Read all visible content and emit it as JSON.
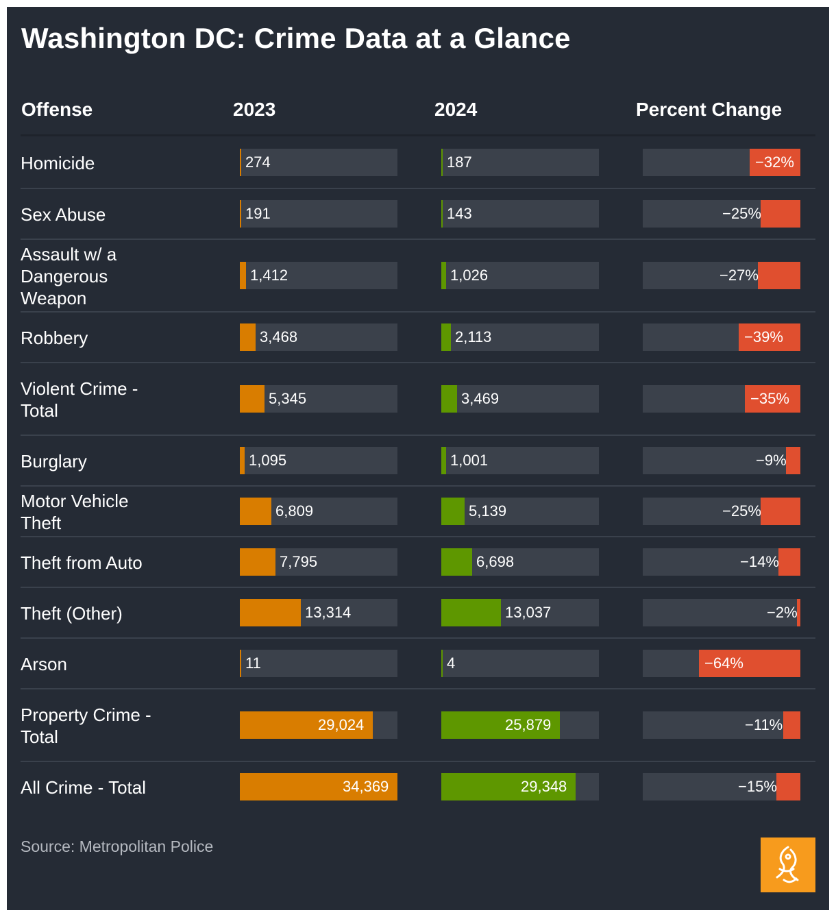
{
  "title": "Washington DC: Crime Data at a Glance",
  "headers": {
    "offense": "Offense",
    "y2023": "2023",
    "y2024": "2024",
    "pct": "Percent Change"
  },
  "source": "Source: Metropolitan Police",
  "logo_text": "الجزيرة",
  "colors": {
    "background": "#252b35",
    "bar_2023": "#d97d00",
    "bar_2024": "#5e9700",
    "bar_change": "#e04f2f",
    "track": "#3b414b",
    "logo": "#f79b1d"
  },
  "chart_data": {
    "type": "table",
    "title": "Washington DC: Crime Data at a Glance",
    "columns": [
      "Offense",
      "2023",
      "2024",
      "Percent Change"
    ],
    "rows": [
      {
        "offense": "Homicide",
        "v2023": 274,
        "v2023_label": "274",
        "v2024": 187,
        "v2024_label": "187",
        "pct": -32,
        "pct_label": "−32%"
      },
      {
        "offense": "Sex Abuse",
        "v2023": 191,
        "v2023_label": "191",
        "v2024": 143,
        "v2024_label": "143",
        "pct": -25,
        "pct_label": "−25%"
      },
      {
        "offense": "Assault w/ a Dangerous Weapon",
        "v2023": 1412,
        "v2023_label": "1,412",
        "v2024": 1026,
        "v2024_label": "1,026",
        "pct": -27,
        "pct_label": "−27%"
      },
      {
        "offense": "Robbery",
        "v2023": 3468,
        "v2023_label": "3,468",
        "v2024": 2113,
        "v2024_label": "2,113",
        "pct": -39,
        "pct_label": "−39%"
      },
      {
        "offense": "Violent Crime - Total",
        "v2023": 5345,
        "v2023_label": "5,345",
        "v2024": 3469,
        "v2024_label": "3,469",
        "pct": -35,
        "pct_label": "−35%"
      },
      {
        "offense": "Burglary",
        "v2023": 1095,
        "v2023_label": "1,095",
        "v2024": 1001,
        "v2024_label": "1,001",
        "pct": -9,
        "pct_label": "−9%"
      },
      {
        "offense": "Motor Vehicle Theft",
        "v2023": 6809,
        "v2023_label": "6,809",
        "v2024": 5139,
        "v2024_label": "5,139",
        "pct": -25,
        "pct_label": "−25%"
      },
      {
        "offense": "Theft from Auto",
        "v2023": 7795,
        "v2023_label": "7,795",
        "v2024": 6698,
        "v2024_label": "6,698",
        "pct": -14,
        "pct_label": "−14%"
      },
      {
        "offense": "Theft (Other)",
        "v2023": 13314,
        "v2023_label": "13,314",
        "v2024": 13037,
        "v2024_label": "13,037",
        "pct": -2,
        "pct_label": "−2%"
      },
      {
        "offense": "Arson",
        "v2023": 11,
        "v2023_label": "11",
        "v2024": 4,
        "v2024_label": "4",
        "pct": -64,
        "pct_label": "−64%"
      },
      {
        "offense": "Property Crime - Total",
        "v2023": 29024,
        "v2023_label": "29,024",
        "v2024": 25879,
        "v2024_label": "25,879",
        "pct": -11,
        "pct_label": "−11%"
      },
      {
        "offense": "All Crime - Total",
        "v2023": 34369,
        "v2023_label": "34,369",
        "v2024": 29348,
        "v2024_label": "29,348",
        "pct": -15,
        "pct_label": "−15%"
      }
    ],
    "value_max": 34369,
    "pct_max": 64
  }
}
